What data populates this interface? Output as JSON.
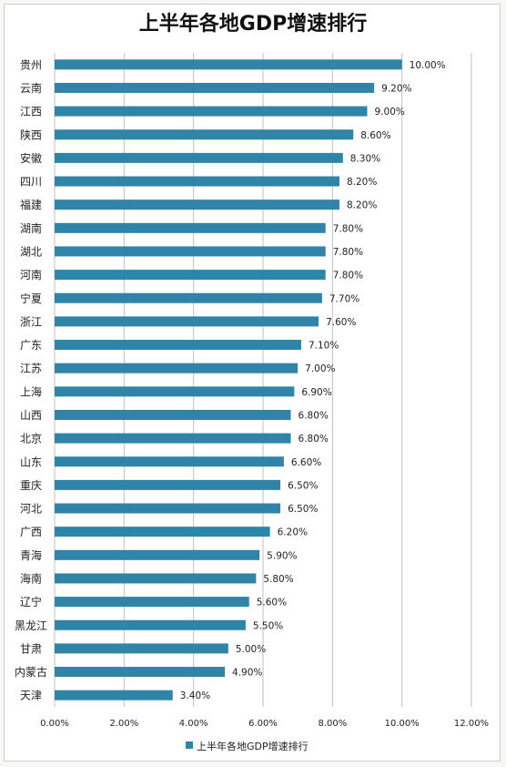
{
  "chart_data": {
    "type": "bar",
    "orientation": "horizontal",
    "title": "上半年各地GDP增速排行",
    "categories": [
      "贵州",
      "云南",
      "江西",
      "陕西",
      "安徽",
      "四川",
      "福建",
      "湖南",
      "湖北",
      "河南",
      "宁夏",
      "浙江",
      "广东",
      "江苏",
      "上海",
      "山西",
      "北京",
      "山东",
      "重庆",
      "河北",
      "广西",
      "青海",
      "海南",
      "辽宁",
      "黑龙江",
      "甘肃",
      "内蒙古",
      "天津"
    ],
    "values": [
      10.0,
      9.2,
      9.0,
      8.6,
      8.3,
      8.2,
      8.2,
      7.8,
      7.8,
      7.8,
      7.7,
      7.6,
      7.1,
      7.0,
      6.9,
      6.8,
      6.8,
      6.6,
      6.5,
      6.5,
      6.2,
      5.9,
      5.8,
      5.6,
      5.5,
      5.0,
      4.9,
      3.4
    ],
    "value_labels": [
      "10.00%",
      "9.20%",
      "9.00%",
      "8.60%",
      "8.30%",
      "8.20%",
      "8.20%",
      "7.80%",
      "7.80%",
      "7.80%",
      "7.70%",
      "7.60%",
      "7.10%",
      "7.00%",
      "6.90%",
      "6.80%",
      "6.80%",
      "6.60%",
      "6.50%",
      "6.50%",
      "6.20%",
      "5.90%",
      "5.80%",
      "5.60%",
      "5.50%",
      "5.00%",
      "4.90%",
      "3.40%"
    ],
    "xticks": [
      "0.00%",
      "2.00%",
      "4.00%",
      "6.00%",
      "8.00%",
      "10.00%",
      "12.00%"
    ],
    "xlim": [
      0,
      12
    ],
    "grid": true,
    "legend": {
      "label": "上半年各地GDP增速排行",
      "position": "bottom"
    },
    "colors": {
      "bar": "#2f84a8",
      "grid": "#bfbfbf"
    }
  }
}
